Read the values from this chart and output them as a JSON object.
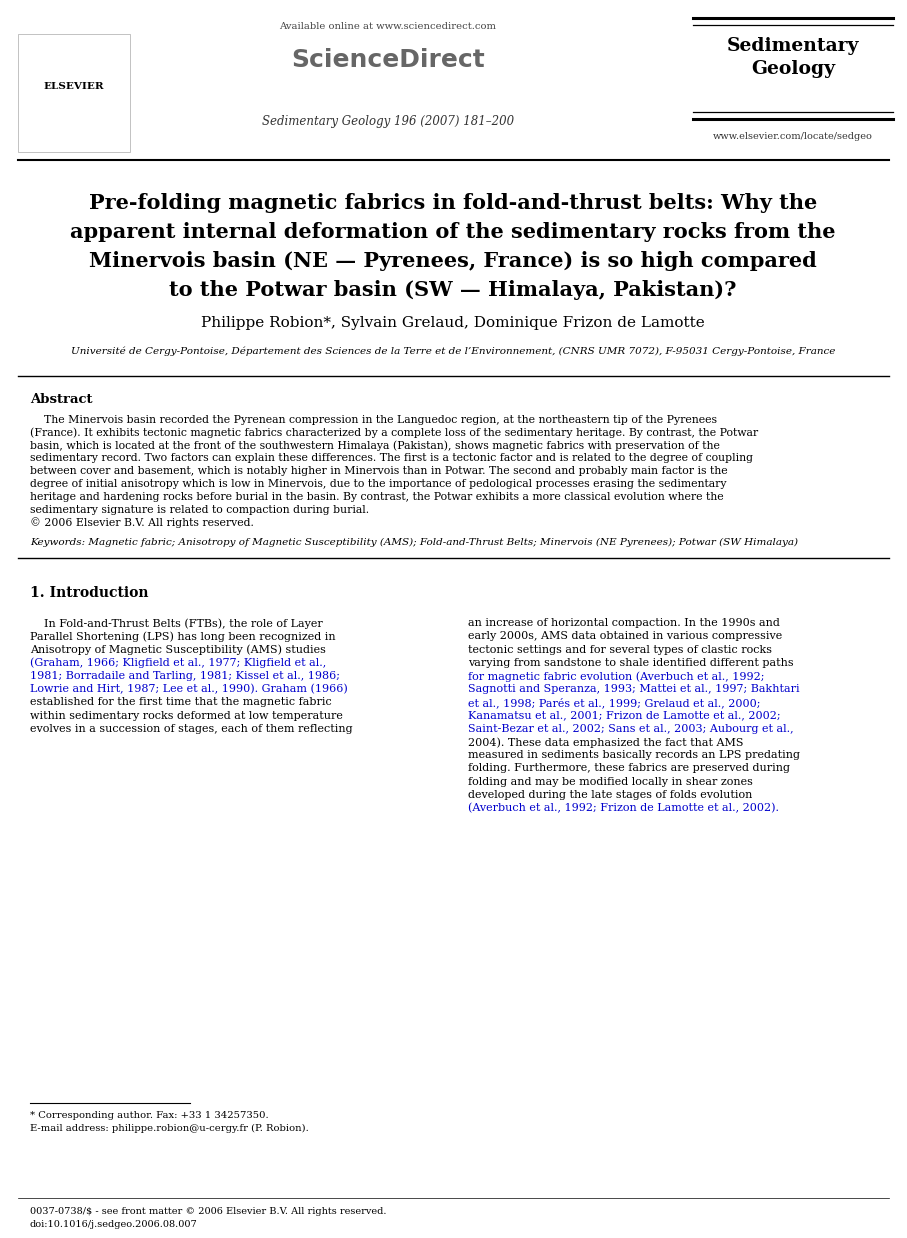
{
  "bg_color": "#ffffff",
  "title_line1": "Pre-folding magnetic fabrics in fold-and-thrust belts: Why the",
  "title_line2": "apparent internal deformation of the sedimentary rocks from the",
  "title_line3": "Minervois basin (NE — Pyrenees, France) is so high compared",
  "title_line4": "to the Potwar basin (SW — Himalaya, Pakistan)?",
  "authors": "Philippe Robion*, Sylvain Grelaud, Dominique Frizon de Lamotte",
  "affiliation": "Université de Cergy-Pontoise, Département des Sciences de la Terre et de l’Environnement, (CNRS UMR 7072), F-95031 Cergy-Pontoise, France",
  "header_available": "Available online at www.sciencedirect.com",
  "header_journal_name": "ScienceDirect",
  "header_journal_info": "Sedimentary Geology 196 (2007) 181–200",
  "journal_title": "Sedimentary\nGeology",
  "journal_url": "www.elsevier.com/locate/sedgeo",
  "abstract_label": "Abstract",
  "abstract_lines": [
    "    The Minervois basin recorded the Pyrenean compression in the Languedoc region, at the northeastern tip of the Pyrenees",
    "(France). It exhibits tectonic magnetic fabrics characterized by a complete loss of the sedimentary heritage. By contrast, the Potwar",
    "basin, which is located at the front of the southwestern Himalaya (Pakistan), shows magnetic fabrics with preservation of the",
    "sedimentary record. Two factors can explain these differences. The first is a tectonic factor and is related to the degree of coupling",
    "between cover and basement, which is notably higher in Minervois than in Potwar. The second and probably main factor is the",
    "degree of initial anisotropy which is low in Minervois, due to the importance of pedological processes erasing the sedimentary",
    "heritage and hardening rocks before burial in the basin. By contrast, the Potwar exhibits a more classical evolution where the",
    "sedimentary signature is related to compaction during burial.",
    "© 2006 Elsevier B.V. All rights reserved."
  ],
  "keywords_text": "Keywords: Magnetic fabric; Anisotropy of Magnetic Susceptibility (AMS); Fold-and-Thrust Belts; Minervois (NE Pyrenees); Potwar (SW Himalaya)",
  "section1_title": "1. Introduction",
  "col1_lines": [
    [
      "    In Fold-and-Thrust Belts (FTBs), the role of Layer",
      "black"
    ],
    [
      "Parallel Shortening (LPS) has long been recognized in",
      "black"
    ],
    [
      "Anisotropy of Magnetic Susceptibility (AMS) studies",
      "black"
    ],
    [
      "(Graham, 1966; Kligfield et al., 1977; Kligfield et al.,",
      "blue"
    ],
    [
      "1981; Borradaile and Tarling, 1981; Kissel et al., 1986;",
      "blue"
    ],
    [
      "Lowrie and Hirt, 1987; Lee et al., 1990). Graham (1966)",
      "blue"
    ],
    [
      "established for the first time that the magnetic fabric",
      "black"
    ],
    [
      "within sedimentary rocks deformed at low temperature",
      "black"
    ],
    [
      "evolves in a succession of stages, each of them reflecting",
      "black"
    ]
  ],
  "col2_lines": [
    [
      "an increase of horizontal compaction. In the 1990s and",
      "black"
    ],
    [
      "early 2000s, AMS data obtained in various compressive",
      "black"
    ],
    [
      "tectonic settings and for several types of clastic rocks",
      "black"
    ],
    [
      "varying from sandstone to shale identified different paths",
      "black"
    ],
    [
      "for magnetic fabric evolution (Averbuch et al., 1992;",
      "blue"
    ],
    [
      "Sagnotti and Speranza, 1993; Mattei et al., 1997; Bakhtari",
      "blue"
    ],
    [
      "et al., 1998; Parés et al., 1999; Grelaud et al., 2000;",
      "blue"
    ],
    [
      "Kanamatsu et al., 2001; Frizon de Lamotte et al., 2002;",
      "blue"
    ],
    [
      "Saint-Bezar et al., 2002; Sans et al., 2003; Aubourg et al.,",
      "blue"
    ],
    [
      "2004). These data emphasized the fact that AMS",
      "black"
    ],
    [
      "measured in sediments basically records an LPS predating",
      "black"
    ],
    [
      "folding. Furthermore, these fabrics are preserved during",
      "black"
    ],
    [
      "folding and may be modified locally in shear zones",
      "black"
    ],
    [
      "developed during the late stages of folds evolution",
      "black"
    ],
    [
      "(Averbuch et al., 1992; Frizon de Lamotte et al., 2002).",
      "blue"
    ]
  ],
  "footnote_star": "* Corresponding author. Fax: +33 1 34257350.",
  "footnote_email": "E-mail address: philippe.robion@u-cergy.fr (P. Robion).",
  "footer_issn": "0037-0738/$ - see front matter © 2006 Elsevier B.V. All rights reserved.",
  "footer_doi": "doi:10.1016/j.sedgeo.2006.08.007",
  "blue_color": "#0000cc"
}
